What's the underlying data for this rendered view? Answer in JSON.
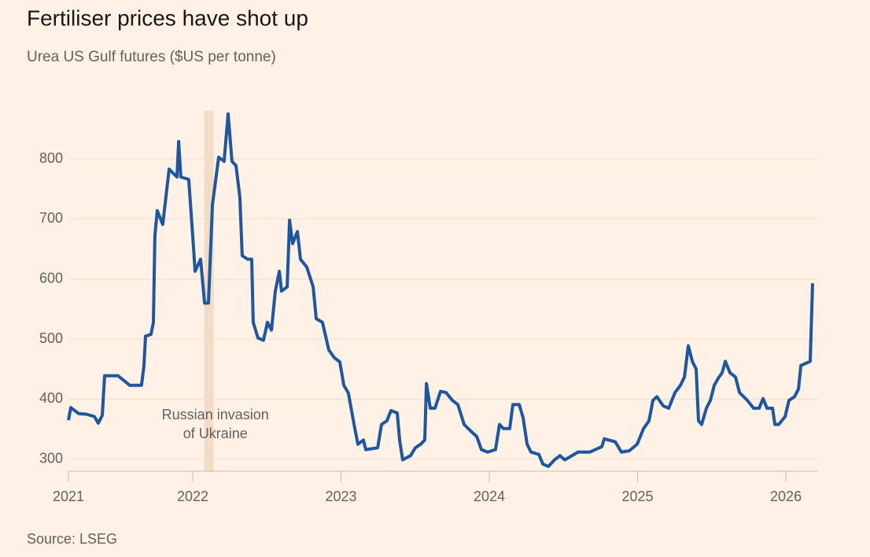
{
  "chart_data": {
    "type": "line",
    "title": "Fertiliser prices have shot up",
    "subtitle": "Urea US Gulf futures ($US per tonne)",
    "source": "Source: LSEG",
    "annotation": {
      "lines": [
        "Russian invasion",
        "of Ukraine"
      ],
      "x": 2022.11,
      "color": "#f2dcc4"
    },
    "xlim": [
      2021.162,
      2026.18
    ],
    "xticks": [
      2021,
      2022,
      2023,
      2024,
      2025,
      2026
    ],
    "ylim": [
      280,
      880
    ],
    "yticks": [
      300,
      400,
      500,
      600,
      700,
      800
    ],
    "grid": true,
    "series": [
      {
        "name": "Urea US Gulf futures",
        "color": "#1d57a0",
        "x": [
          2021.162,
          2021.178,
          2021.231,
          2021.284,
          2021.337,
          2021.363,
          2021.39,
          2021.406,
          2021.443,
          2021.496,
          2021.576,
          2021.655,
          2021.671,
          2021.682,
          2021.719,
          2021.735,
          2021.745,
          2021.761,
          2021.798,
          2021.841,
          2021.894,
          2021.905,
          2021.92,
          2021.973,
          2022.0,
          2022.016,
          2022.053,
          2022.08,
          2022.106,
          2022.133,
          2022.175,
          2022.212,
          2022.239,
          2022.265,
          2022.292,
          2022.318,
          2022.334,
          2022.371,
          2022.398,
          2022.408,
          2022.44,
          2022.477,
          2022.504,
          2022.531,
          2022.557,
          2022.584,
          2022.599,
          2022.637,
          2022.653,
          2022.674,
          2022.706,
          2022.727,
          2022.769,
          2022.812,
          2022.833,
          2022.875,
          2022.918,
          2022.955,
          2022.992,
          2023.019,
          2023.05,
          2023.088,
          2023.114,
          2023.151,
          2023.167,
          2023.247,
          2023.273,
          2023.31,
          2023.337,
          2023.379,
          2023.395,
          2023.416,
          2023.469,
          2023.501,
          2023.538,
          2023.565,
          2023.576,
          2023.602,
          2023.634,
          2023.671,
          2023.708,
          2023.751,
          2023.788,
          2023.83,
          2023.883,
          2023.915,
          2023.947,
          2023.989,
          2024.042,
          2024.069,
          2024.095,
          2024.138,
          2024.159,
          2024.202,
          2024.228,
          2024.255,
          2024.281,
          2024.334,
          2024.361,
          2024.398,
          2024.44,
          2024.477,
          2024.509,
          2024.599,
          2024.679,
          2024.759,
          2024.775,
          2024.849,
          2024.891,
          2024.944,
          2024.997,
          2025.04,
          2025.077,
          2025.103,
          2025.13,
          2025.172,
          2025.21,
          2025.252,
          2025.289,
          2025.316,
          2025.342,
          2025.369,
          2025.395,
          2025.411,
          2025.432,
          2025.464,
          2025.491,
          2025.517,
          2025.544,
          2025.57,
          2025.592,
          2025.623,
          2025.66,
          2025.687,
          2025.74,
          2025.782,
          2025.82,
          2025.846,
          2025.873,
          2025.91,
          2025.926,
          2025.952,
          2025.995,
          2026.021,
          2026.058,
          2026.085,
          2026.101,
          2026.164,
          2026.18
        ],
        "values": [
          365,
          386,
          376,
          375,
          371,
          360,
          373,
          439,
          439,
          439,
          423,
          423,
          456,
          505,
          508,
          528,
          672,
          714,
          691,
          783,
          770,
          829,
          770,
          766,
          672,
          613,
          633,
          560,
          560,
          724,
          803,
          796,
          875,
          796,
          789,
          737,
          639,
          633,
          633,
          528,
          502,
          498,
          528,
          515,
          580,
          613,
          580,
          587,
          698,
          659,
          679,
          633,
          620,
          587,
          534,
          528,
          482,
          469,
          462,
          423,
          410,
          358,
          325,
          332,
          316,
          319,
          358,
          364,
          381,
          377,
          332,
          299,
          306,
          319,
          325,
          332,
          426,
          385,
          385,
          413,
          411,
          398,
          391,
          358,
          345,
          338,
          316,
          312,
          316,
          358,
          351,
          351,
          391,
          391,
          369,
          325,
          312,
          308,
          292,
          288,
          299,
          306,
          299,
          312,
          312,
          321,
          334,
          329,
          312,
          314,
          325,
          351,
          364,
          398,
          404,
          389,
          385,
          411,
          423,
          437,
          489,
          463,
          450,
          364,
          358,
          385,
          398,
          423,
          435,
          444,
          463,
          444,
          437,
          411,
          398,
          385,
          385,
          401,
          385,
          385,
          358,
          358,
          371,
          398,
          404,
          417,
          456,
          463,
          593
        ]
      }
    ]
  }
}
